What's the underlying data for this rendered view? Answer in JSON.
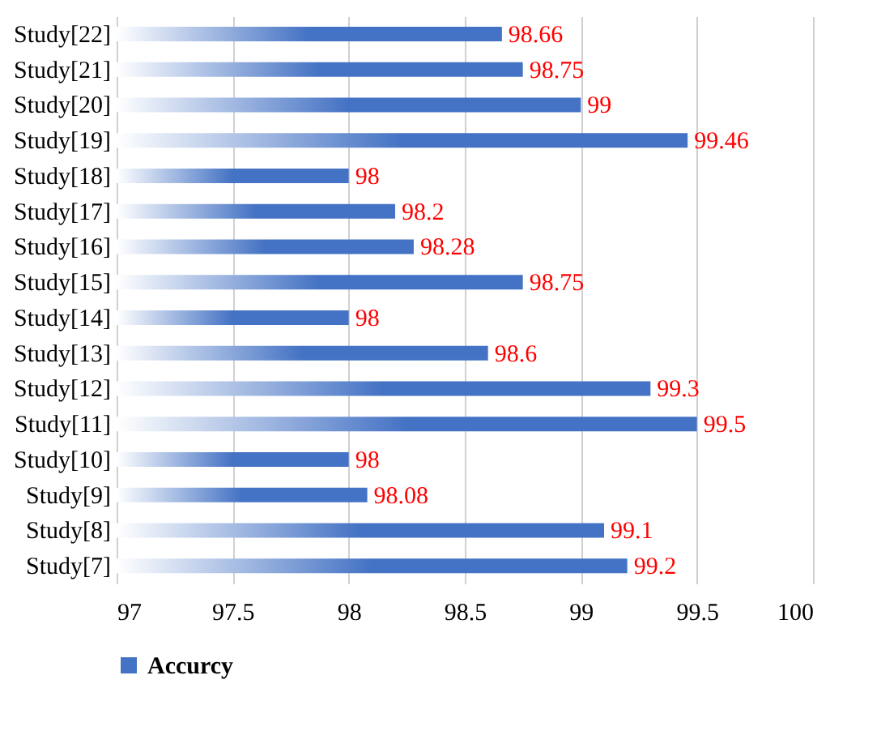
{
  "chart_data": {
    "type": "bar",
    "orientation": "horizontal",
    "categories": [
      "Study[22]",
      "Study[21]",
      "Study[20]",
      "Study[19]",
      "Study[18]",
      "Study[17]",
      "Study[16]",
      "Study[15]",
      "Study[14]",
      "Study[13]",
      "Study[12]",
      "Study[11]",
      "Study[10]",
      "Study[9]",
      "Study[8]",
      "Study[7]"
    ],
    "series": [
      {
        "name": "Accurcy",
        "color": "#4472c4",
        "values": [
          98.66,
          98.75,
          99,
          99.46,
          98,
          98.2,
          98.28,
          98.75,
          98,
          98.6,
          99.3,
          99.5,
          98,
          98.08,
          99.1,
          99.2
        ]
      }
    ],
    "xlim": [
      97,
      100
    ],
    "xticks": [
      97,
      97.5,
      98,
      98.5,
      99,
      99.5,
      100
    ],
    "grid": "x",
    "legend": "bottom",
    "data_labels": true
  }
}
